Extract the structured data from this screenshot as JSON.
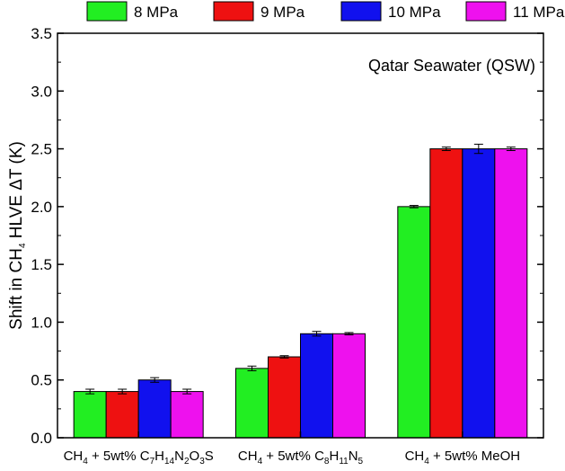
{
  "chart_data": {
    "type": "bar",
    "title": "",
    "annotation": "Qatar Seawater (QSW)",
    "ylabel": {
      "parts": [
        {
          "t": "Shift in CH",
          "sub": false
        },
        {
          "t": "4",
          "sub": true
        },
        {
          "t": " HLVE ΔT (K)",
          "sub": false
        }
      ]
    },
    "xlabel": "",
    "ylim": [
      0,
      3.5
    ],
    "yticks": [
      "0.0",
      "0.5",
      "1.0",
      "1.5",
      "2.0",
      "2.5",
      "3.0",
      "3.5"
    ],
    "categories": [
      {
        "parts": [
          {
            "t": "CH",
            "sub": false
          },
          {
            "t": "4",
            "sub": true
          },
          {
            "t": " + 5wt% C",
            "sub": false
          },
          {
            "t": "7",
            "sub": true
          },
          {
            "t": "H",
            "sub": false
          },
          {
            "t": "14",
            "sub": true
          },
          {
            "t": "N",
            "sub": false
          },
          {
            "t": "2",
            "sub": true
          },
          {
            "t": "O",
            "sub": false
          },
          {
            "t": "3",
            "sub": true
          },
          {
            "t": "S",
            "sub": false
          }
        ]
      },
      {
        "parts": [
          {
            "t": "CH",
            "sub": false
          },
          {
            "t": "4",
            "sub": true
          },
          {
            "t": " + 5wt% C",
            "sub": false
          },
          {
            "t": "8",
            "sub": true
          },
          {
            "t": "H",
            "sub": false
          },
          {
            "t": "11",
            "sub": true
          },
          {
            "t": "N",
            "sub": false
          },
          {
            "t": "5",
            "sub": true
          }
        ]
      },
      {
        "parts": [
          {
            "t": "CH",
            "sub": false
          },
          {
            "t": "4",
            "sub": true
          },
          {
            "t": " + 5wt% MeOH",
            "sub": false
          }
        ]
      }
    ],
    "series": [
      {
        "name": "8 MPa",
        "color": "#22ee22",
        "values": [
          0.4,
          0.6,
          2.0
        ],
        "errors": [
          0.02,
          0.02,
          0.01
        ]
      },
      {
        "name": "9 MPa",
        "color": "#ee1111",
        "values": [
          0.4,
          0.7,
          2.5
        ],
        "errors": [
          0.02,
          0.01,
          0.015
        ]
      },
      {
        "name": "10 MPa",
        "color": "#1111ee",
        "values": [
          0.5,
          0.9,
          2.5
        ],
        "errors": [
          0.02,
          0.02,
          0.04
        ]
      },
      {
        "name": "11 MPa",
        "color": "#ee11ee",
        "values": [
          0.4,
          0.9,
          2.5
        ],
        "errors": [
          0.02,
          0.01,
          0.015
        ]
      }
    ],
    "legend_position": "top"
  }
}
